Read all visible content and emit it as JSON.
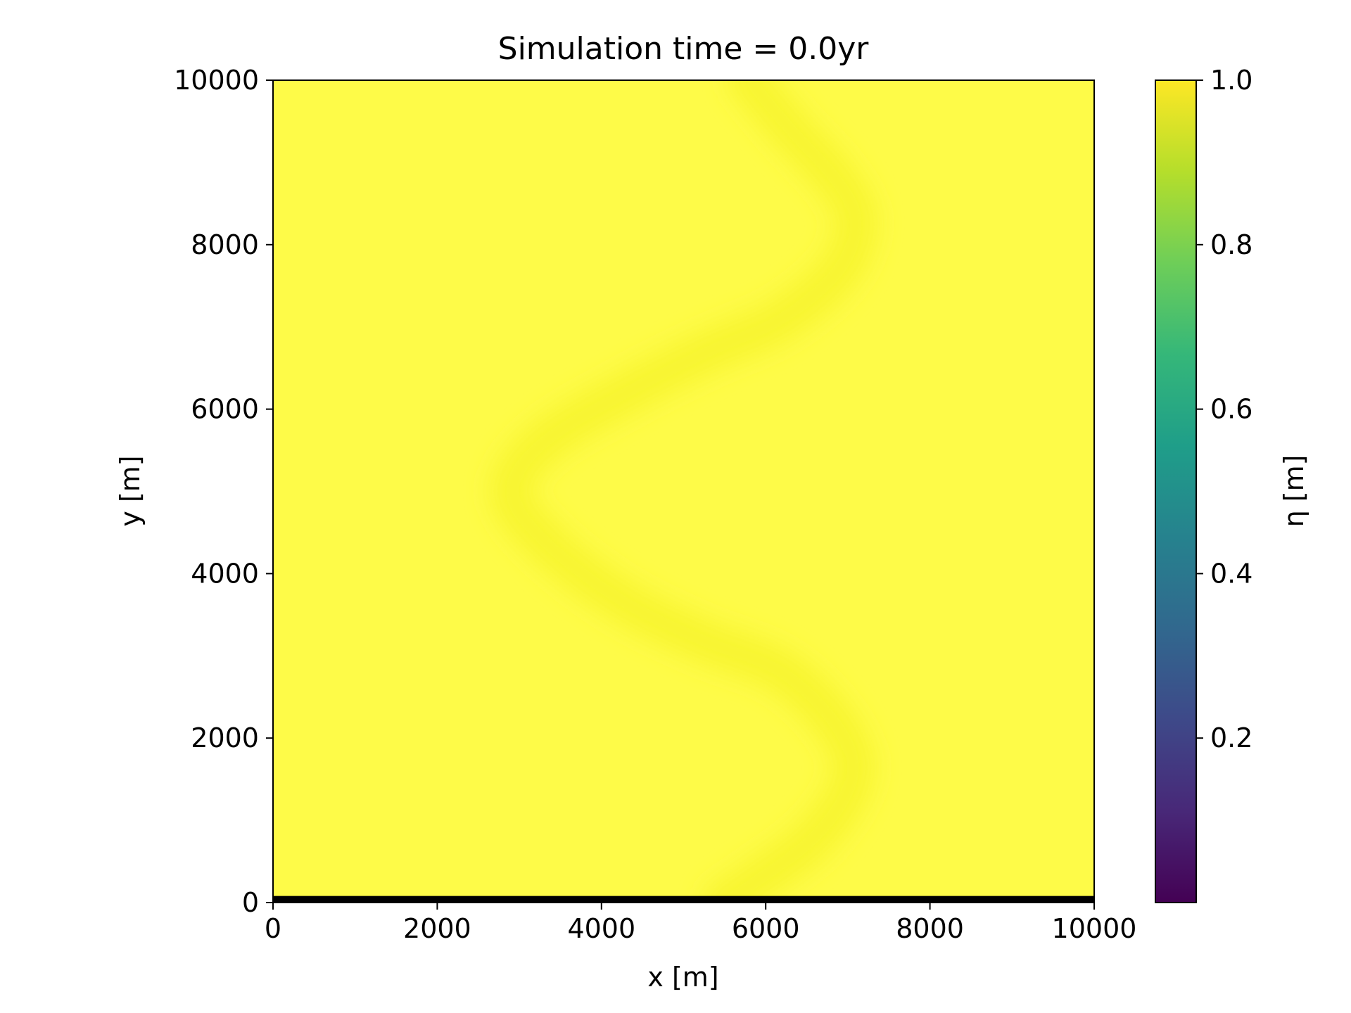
{
  "chart_data": {
    "type": "heatmap",
    "title": "Simulation time = 0.0yr",
    "xlabel": "x [m]",
    "ylabel": "y [m]",
    "xlim": [
      0,
      10000
    ],
    "ylim": [
      0,
      10000
    ],
    "x_ticks": [
      0,
      2000,
      4000,
      6000,
      8000,
      10000
    ],
    "y_ticks": [
      0,
      2000,
      4000,
      6000,
      8000,
      10000
    ],
    "x_tick_labels": [
      "0",
      "2000",
      "4000",
      "6000",
      "8000",
      "10000"
    ],
    "y_tick_labels": [
      "0",
      "2000",
      "4000",
      "6000",
      "8000",
      "10000"
    ],
    "grid": false,
    "colormap": "viridis",
    "colorbar": {
      "label": "η [m]",
      "range": [
        0.0,
        1.0
      ],
      "ticks": [
        0.2,
        0.4,
        0.6,
        0.8,
        1.0
      ],
      "tick_labels": [
        "0.2",
        "0.4",
        "0.6",
        "0.8",
        "1.0"
      ],
      "colors": [
        "#440154",
        "#482878",
        "#3e4989",
        "#31688e",
        "#26828e",
        "#1f9e89",
        "#35b779",
        "#6ece58",
        "#b5de2b",
        "#fde725"
      ]
    },
    "field": {
      "background_value": 1.0,
      "background_color": "#fefb48",
      "channel_value": 0.99,
      "channel_color": "#f8f530",
      "channel_centerline": [
        [
          5800,
          10000
        ],
        [
          6300,
          9400
        ],
        [
          6850,
          8800
        ],
        [
          7100,
          8300
        ],
        [
          6900,
          7700
        ],
        [
          6200,
          7100
        ],
        [
          5300,
          6700
        ],
        [
          4300,
          6200
        ],
        [
          3300,
          5600
        ],
        [
          2900,
          5000
        ],
        [
          3300,
          4400
        ],
        [
          4200,
          3700
        ],
        [
          5200,
          3200
        ],
        [
          6200,
          2800
        ],
        [
          6900,
          2100
        ],
        [
          7050,
          1500
        ],
        [
          6600,
          800
        ],
        [
          5800,
          200
        ],
        [
          5500,
          0
        ]
      ],
      "boundary_strip": {
        "y_range": [
          0,
          80
        ],
        "value": 0.0,
        "color": "#000000"
      }
    }
  }
}
